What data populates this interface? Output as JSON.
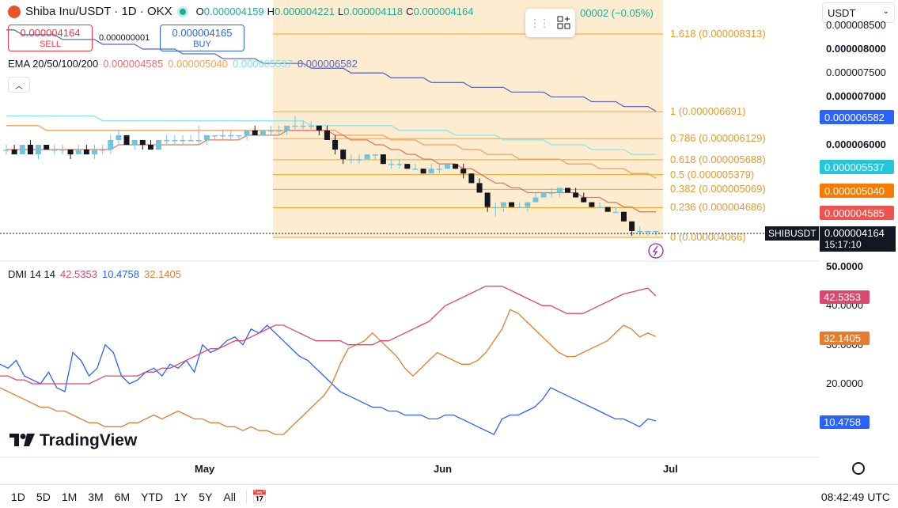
{
  "header": {
    "symbol": "Shiba Inu/USDT · 1D · OKX",
    "ohlc": [
      {
        "key": "O",
        "value": "0.000004159"
      },
      {
        "key": "H",
        "value": "0.000004221"
      },
      {
        "key": "L",
        "value": "0.000004118"
      },
      {
        "key": "C",
        "value": "0.000004164"
      }
    ],
    "change": "00002 (−0.05%)"
  },
  "trade": {
    "sell_price": "0.000004164",
    "sell_label": "SELL",
    "spread": "0.000000001",
    "buy_price": "0.000004165",
    "buy_label": "BUY"
  },
  "ema": {
    "label": "EMA 20/50/100/200",
    "values": [
      {
        "value": "0.000004585",
        "color": "#e57373"
      },
      {
        "value": "0.000005040",
        "color": "#f0a35e"
      },
      {
        "value": "0.000005537",
        "color": "#80deea"
      },
      {
        "value": "0.000006582",
        "color": "#5c6bc0"
      }
    ]
  },
  "currency": {
    "selected": "USDT"
  },
  "price_axis": [
    {
      "label": "0.000008500",
      "y": 26,
      "bold": false
    },
    {
      "label": "0.000008000",
      "y": 55,
      "bold": true
    },
    {
      "label": "0.000007500",
      "y": 85,
      "bold": false
    },
    {
      "label": "0.000007000",
      "y": 116,
      "bold": true
    },
    {
      "label": "0.000006000",
      "y": 177,
      "bold": true
    }
  ],
  "price_tags": [
    {
      "label": "0.000006582",
      "color": "#2962ff",
      "y": 140
    },
    {
      "label": "0.000005537",
      "color": "#26c6da",
      "y": 203
    },
    {
      "label": "0.000005040",
      "color": "#f57c00",
      "y": 233
    },
    {
      "label": "0.000004585",
      "color": "#ef5350",
      "y": 261
    }
  ],
  "last": {
    "symbol": "SHIBUSDT",
    "price": "0.000004164",
    "countdown": "15:17:10"
  },
  "fib_levels": [
    {
      "label": "1.618 (0.000008313)",
      "price": 8.313e-06
    },
    {
      "label": "1 (0.000006691)",
      "price": 6.691e-06
    },
    {
      "label": "0.786 (0.000006129)",
      "price": 6.129e-06
    },
    {
      "label": "0.618 (0.000005688)",
      "price": 5.688e-06
    },
    {
      "label": "0.5 (0.000005379)",
      "price": 5.379e-06
    },
    {
      "label": "0.382 (0.000005069)",
      "price": 5.069e-06
    },
    {
      "label": "0.236 (0.000004686)",
      "price": 4.686e-06
    },
    {
      "label": "0 (0.000004066)",
      "price": 4.066e-06
    }
  ],
  "dmi": {
    "label": "DMI 14 14",
    "values": [
      {
        "value": "42.5353",
        "color": "#d9486d"
      },
      {
        "value": "10.4758",
        "color": "#2962ff"
      },
      {
        "value": "32.1405",
        "color": "#e57c2f"
      }
    ],
    "axis": [
      "50.0000",
      "40.0000",
      "30.0000",
      "20.0000"
    ],
    "tags": [
      {
        "label": "42.5353",
        "color": "#d9486d",
        "y": 367
      },
      {
        "label": "32.1405",
        "color": "#e57c2f",
        "y": 419
      },
      {
        "label": "10.4758",
        "color": "#2962ff",
        "y": 525
      }
    ]
  },
  "time_axis": [
    {
      "label": "May",
      "x": 246
    },
    {
      "label": "Jun",
      "x": 548
    },
    {
      "label": "Jul",
      "x": 838
    }
  ],
  "bottom": {
    "ranges": [
      "1D",
      "5D",
      "1M",
      "3M",
      "6M",
      "YTD",
      "1Y",
      "5Y",
      "All"
    ],
    "clock": "08:42:49 UTC"
  },
  "brand": "TradingView",
  "colors": {
    "up": "#26a69a",
    "down": "#131722",
    "fib": "#f5a623",
    "fib_zone": "#fde9c8"
  },
  "chart_data": {
    "type": "candlestick",
    "candles": [
      [
        5.9e-06,
        6e-06,
        5.8e-06,
        5.9e-06
      ],
      [
        5.9e-06,
        6e-06,
        5.8e-06,
        5.8e-06
      ],
      [
        5.8e-06,
        6e-06,
        5.8e-06,
        6e-06
      ],
      [
        6e-06,
        6.1e-06,
        5.8e-06,
        5.8e-06
      ],
      [
        5.8e-06,
        6e-06,
        5.7e-06,
        6e-06
      ],
      [
        6e-06,
        6e-06,
        5.9e-06,
        5.9e-06
      ],
      [
        5.9e-06,
        6e-06,
        5.8e-06,
        5.9e-06
      ],
      [
        5.9e-06,
        6e-06,
        5.8e-06,
        5.9e-06
      ],
      [
        5.9e-06,
        5.9e-06,
        5.7e-06,
        5.8e-06
      ],
      [
        5.8e-06,
        6e-06,
        5.8e-06,
        5.9e-06
      ],
      [
        5.9e-06,
        6e-06,
        5.8e-06,
        5.8e-06
      ],
      [
        5.8e-06,
        6e-06,
        5.7e-06,
        5.9e-06
      ],
      [
        5.9e-06,
        6e-06,
        5.8e-06,
        5.9e-06
      ],
      [
        5.9e-06,
        6.2e-06,
        5.8e-06,
        6.1e-06
      ],
      [
        6.1e-06,
        6.3e-06,
        6e-06,
        6.2e-06
      ],
      [
        6.2e-06,
        6.2e-06,
        6e-06,
        6e-06
      ],
      [
        6e-06,
        6.1e-06,
        5.9e-06,
        6.1e-06
      ],
      [
        6.1e-06,
        6.1e-06,
        5.9e-06,
        6e-06
      ],
      [
        6e-06,
        6.1e-06,
        5.9e-06,
        5.9e-06
      ],
      [
        5.9e-06,
        6.1e-06,
        5.9e-06,
        6.1e-06
      ],
      [
        6.1e-06,
        6.2e-06,
        6e-06,
        6.1e-06
      ],
      [
        6.1e-06,
        6.2e-06,
        6e-06,
        6.1e-06
      ],
      [
        6.1e-06,
        6.2e-06,
        6e-06,
        6.1e-06
      ],
      [
        6.1e-06,
        6.2e-06,
        6.1e-06,
        6.1e-06
      ],
      [
        6.1e-06,
        6.4e-06,
        6e-06,
        6.1e-06
      ],
      [
        6.1e-06,
        6.2e-06,
        6e-06,
        6.2e-06
      ],
      [
        6.2e-06,
        6.2e-06,
        6.1e-06,
        6.2e-06
      ],
      [
        6.2e-06,
        6.3e-06,
        6.1e-06,
        6.2e-06
      ],
      [
        6.2e-06,
        6.3e-06,
        6.1e-06,
        6.2e-06
      ],
      [
        6.2e-06,
        6.2e-06,
        6.1e-06,
        6.2e-06
      ],
      [
        6.2e-06,
        6.3e-06,
        6.1e-06,
        6.3e-06
      ],
      [
        6.3e-06,
        6.4e-06,
        6.2e-06,
        6.2e-06
      ],
      [
        6.2e-06,
        6.3e-06,
        6.2e-06,
        6.3e-06
      ],
      [
        6.3e-06,
        6.4e-06,
        6.2e-06,
        6.3e-06
      ],
      [
        6.3e-06,
        6.4e-06,
        6.2e-06,
        6.3e-06
      ],
      [
        6.3e-06,
        6.4e-06,
        6.2e-06,
        6.4e-06
      ],
      [
        6.4e-06,
        6.6e-06,
        6.3e-06,
        6.4e-06
      ],
      [
        6.4e-06,
        6.5e-06,
        6.3e-06,
        6.4e-06
      ],
      [
        6.4e-06,
        6.5e-06,
        6.3e-06,
        6.4e-06
      ],
      [
        6.4e-06,
        6.4e-06,
        6.2e-06,
        6.3e-06
      ],
      [
        6.3e-06,
        6.4e-06,
        6.1e-06,
        6.1e-06
      ],
      [
        6.1e-06,
        6.2e-06,
        5.8e-06,
        5.9e-06
      ],
      [
        5.9e-06,
        5.9e-06,
        5.6e-06,
        5.7e-06
      ],
      [
        5.7e-06,
        5.8e-06,
        5.6e-06,
        5.7e-06
      ],
      [
        5.7e-06,
        5.8e-06,
        5.6e-06,
        5.7e-06
      ],
      [
        5.7e-06,
        5.8e-06,
        5.7e-06,
        5.8e-06
      ],
      [
        5.8e-06,
        5.8e-06,
        5.7e-06,
        5.8e-06
      ],
      [
        5.8e-06,
        5.8e-06,
        5.6e-06,
        5.6e-06
      ],
      [
        5.6e-06,
        5.7e-06,
        5.5e-06,
        5.6e-06
      ],
      [
        5.6e-06,
        5.7e-06,
        5.5e-06,
        5.6e-06
      ],
      [
        5.6e-06,
        5.6e-06,
        5.5e-06,
        5.5e-06
      ],
      [
        5.5e-06,
        5.6e-06,
        5.5e-06,
        5.5e-06
      ],
      [
        5.5e-06,
        5.5e-06,
        5.4e-06,
        5.4e-06
      ],
      [
        5.4e-06,
        5.6e-06,
        5.4e-06,
        5.5e-06
      ],
      [
        5.5e-06,
        5.6e-06,
        5.4e-06,
        5.5e-06
      ],
      [
        5.5e-06,
        5.6e-06,
        5.5e-06,
        5.6e-06
      ],
      [
        5.6e-06,
        5.6e-06,
        5.5e-06,
        5.5e-06
      ],
      [
        5.5e-06,
        5.6e-06,
        5.3e-06,
        5.4e-06
      ],
      [
        5.4e-06,
        5.4e-06,
        5.2e-06,
        5.2e-06
      ],
      [
        5.2e-06,
        5.3e-06,
        5e-06,
        5e-06
      ],
      [
        5e-06,
        5e-06,
        4.6e-06,
        4.7e-06
      ],
      [
        4.7e-06,
        4.8e-06,
        4.5e-06,
        4.7e-06
      ],
      [
        4.7e-06,
        4.8e-06,
        4.6e-06,
        4.8e-06
      ],
      [
        4.8e-06,
        4.8e-06,
        4.7e-06,
        4.7e-06
      ],
      [
        4.7e-06,
        4.8e-06,
        4.7e-06,
        4.7e-06
      ],
      [
        4.7e-06,
        4.8e-06,
        4.6e-06,
        4.8e-06
      ],
      [
        4.8e-06,
        5e-06,
        4.8e-06,
        4.9e-06
      ],
      [
        4.9e-06,
        5e-06,
        4.9e-06,
        5e-06
      ],
      [
        5e-06,
        5.1e-06,
        4.9e-06,
        5e-06
      ],
      [
        5e-06,
        5.1e-06,
        4.9e-06,
        5.1e-06
      ],
      [
        5.1e-06,
        5.1e-06,
        5e-06,
        5e-06
      ],
      [
        5e-06,
        5.1e-06,
        4.9e-06,
        4.9e-06
      ],
      [
        4.9e-06,
        5e-06,
        4.8e-06,
        4.8e-06
      ],
      [
        4.8e-06,
        4.8e-06,
        4.7e-06,
        4.7e-06
      ],
      [
        4.7e-06,
        4.8e-06,
        4.7e-06,
        4.7e-06
      ],
      [
        4.7e-06,
        4.7e-06,
        4.6e-06,
        4.6e-06
      ],
      [
        4.6e-06,
        4.7e-06,
        4.6e-06,
        4.6e-06
      ],
      [
        4.6e-06,
        4.6e-06,
        4.4e-06,
        4.4e-06
      ],
      [
        4.4e-06,
        4.4e-06,
        4.1e-06,
        4.2e-06
      ],
      [
        4.2e-06,
        4.3e-06,
        4.1e-06,
        4.2e-06
      ],
      [
        4.2e-06,
        4.2e-06,
        4.1e-06,
        4.2e-06
      ],
      [
        4.2e-06,
        4.2e-06,
        4.1e-06,
        4.2e-06
      ]
    ],
    "ema20": [
      5.9e-06,
      5.9e-06,
      5.9e-06,
      5.9e-06,
      5.9e-06,
      5.9e-06,
      5.9e-06,
      5.9e-06,
      5.9e-06,
      5.9e-06,
      5.9e-06,
      5.9e-06,
      5.9e-06,
      5.9e-06,
      6e-06,
      6e-06,
      6e-06,
      6e-06,
      6e-06,
      6e-06,
      6e-06,
      6e-06,
      6e-06,
      6e-06,
      6e-06,
      6.1e-06,
      6.1e-06,
      6.1e-06,
      6.1e-06,
      6.1e-06,
      6.2e-06,
      6.2e-06,
      6.2e-06,
      6.2e-06,
      6.2e-06,
      6.3e-06,
      6.3e-06,
      6.3e-06,
      6.3e-06,
      6.3e-06,
      6.3e-06,
      6.2e-06,
      6.2e-06,
      6.1e-06,
      6.1e-06,
      6.1e-06,
      6e-06,
      6e-06,
      5.9e-06,
      5.9e-06,
      5.8e-06,
      5.8e-06,
      5.7e-06,
      5.7e-06,
      5.6e-06,
      5.6e-06,
      5.6e-06,
      5.5e-06,
      5.5e-06,
      5.4e-06,
      5.3e-06,
      5.2e-06,
      5.2e-06,
      5.1e-06,
      5.1e-06,
      5e-06,
      5e-06,
      5e-06,
      5e-06,
      5e-06,
      5e-06,
      5e-06,
      4.9e-06,
      4.9e-06,
      4.9e-06,
      4.8e-06,
      4.8e-06,
      4.7e-06,
      4.7e-06,
      4.6e-06,
      4.6e-06,
      4.6e-06
    ],
    "ema50": [
      6.4e-06,
      6.4e-06,
      6.4e-06,
      6.4e-06,
      6.4e-06,
      6.3e-06,
      6.3e-06,
      6.3e-06,
      6.3e-06,
      6.3e-06,
      6.3e-06,
      6.3e-06,
      6.3e-06,
      6.3e-06,
      6.3e-06,
      6.3e-06,
      6.3e-06,
      6.3e-06,
      6.3e-06,
      6.3e-06,
      6.3e-06,
      6.3e-06,
      6.3e-06,
      6.3e-06,
      6.3e-06,
      6.3e-06,
      6.3e-06,
      6.3e-06,
      6.3e-06,
      6.3e-06,
      6.3e-06,
      6.3e-06,
      6.3e-06,
      6.3e-06,
      6.3e-06,
      6.3e-06,
      6.3e-06,
      6.3e-06,
      6.3e-06,
      6.3e-06,
      6.3e-06,
      6.3e-06,
      6.2e-06,
      6.2e-06,
      6.2e-06,
      6.2e-06,
      6.2e-06,
      6.2e-06,
      6.1e-06,
      6.1e-06,
      6.1e-06,
      6.1e-06,
      6e-06,
      6e-06,
      6e-06,
      6e-06,
      6e-06,
      5.9e-06,
      5.9e-06,
      5.9e-06,
      5.8e-06,
      5.8e-06,
      5.8e-06,
      5.8e-06,
      5.7e-06,
      5.7e-06,
      5.7e-06,
      5.7e-06,
      5.7e-06,
      5.7e-06,
      5.6e-06,
      5.6e-06,
      5.6e-06,
      5.6e-06,
      5.5e-06,
      5.5e-06,
      5.5e-06,
      5.5e-06,
      5.4e-06,
      5.4e-06,
      5.4e-06,
      5.3e-06
    ],
    "ema100": [
      6.6e-06,
      6.6e-06,
      6.6e-06,
      6.6e-06,
      6.6e-06,
      6.6e-06,
      6.6e-06,
      6.6e-06,
      6.6e-06,
      6.6e-06,
      6.6e-06,
      6.6e-06,
      6.5e-06,
      6.5e-06,
      6.5e-06,
      6.5e-06,
      6.5e-06,
      6.5e-06,
      6.5e-06,
      6.5e-06,
      6.5e-06,
      6.5e-06,
      6.5e-06,
      6.5e-06,
      6.5e-06,
      6.5e-06,
      6.5e-06,
      6.5e-06,
      6.5e-06,
      6.5e-06,
      6.5e-06,
      6.5e-06,
      6.5e-06,
      6.5e-06,
      6.5e-06,
      6.5e-06,
      6.5e-06,
      6.5e-06,
      6.4e-06,
      6.4e-06,
      6.4e-06,
      6.4e-06,
      6.4e-06,
      6.4e-06,
      6.4e-06,
      6.4e-06,
      6.4e-06,
      6.4e-06,
      6.4e-06,
      6.3e-06,
      6.3e-06,
      6.3e-06,
      6.3e-06,
      6.3e-06,
      6.3e-06,
      6.3e-06,
      6.2e-06,
      6.2e-06,
      6.2e-06,
      6.2e-06,
      6.2e-06,
      6.2e-06,
      6.1e-06,
      6.1e-06,
      6.1e-06,
      6.1e-06,
      6.1e-06,
      6.1e-06,
      6e-06,
      6e-06,
      6e-06,
      6e-06,
      6e-06,
      5.9e-06,
      5.9e-06,
      5.9e-06,
      5.9e-06,
      5.9e-06,
      5.8e-06,
      5.8e-06,
      5.8e-06,
      5.8e-06
    ],
    "ema200": [
      8.4e-06,
      8.4e-06,
      8.3e-06,
      8.3e-06,
      8.3e-06,
      8.3e-06,
      8.3e-06,
      8.2e-06,
      8.2e-06,
      8.2e-06,
      8.2e-06,
      8.2e-06,
      8.1e-06,
      8.1e-06,
      8.1e-06,
      8.1e-06,
      8.1e-06,
      8e-06,
      8e-06,
      8e-06,
      8e-06,
      8e-06,
      7.9e-06,
      7.9e-06,
      7.9e-06,
      7.9e-06,
      7.9e-06,
      7.8e-06,
      7.8e-06,
      7.8e-06,
      7.8e-06,
      7.8e-06,
      7.7e-06,
      7.7e-06,
      7.7e-06,
      7.7e-06,
      7.7e-06,
      7.7e-06,
      7.6e-06,
      7.6e-06,
      7.6e-06,
      7.6e-06,
      7.6e-06,
      7.5e-06,
      7.5e-06,
      7.5e-06,
      7.5e-06,
      7.5e-06,
      7.4e-06,
      7.4e-06,
      7.4e-06,
      7.4e-06,
      7.4e-06,
      7.3e-06,
      7.3e-06,
      7.3e-06,
      7.3e-06,
      7.3e-06,
      7.2e-06,
      7.2e-06,
      7.2e-06,
      7.2e-06,
      7.2e-06,
      7.1e-06,
      7.1e-06,
      7.1e-06,
      7.1e-06,
      7.1e-06,
      7e-06,
      7e-06,
      7e-06,
      7e-06,
      7e-06,
      6.9e-06,
      6.9e-06,
      6.9e-06,
      6.9e-06,
      6.8e-06,
      6.8e-06,
      6.8e-06,
      6.8e-06,
      6.7e-06
    ],
    "dmi_plus": [
      25,
      24,
      26,
      22,
      21,
      20,
      23,
      19,
      18,
      28,
      26,
      22,
      24,
      30,
      28,
      22,
      20,
      21,
      23,
      24,
      22,
      25,
      24,
      26,
      23,
      30,
      28,
      29,
      31,
      32,
      30,
      34,
      33,
      35,
      33,
      31,
      29,
      27,
      26,
      24,
      22,
      20,
      18,
      17,
      16,
      15,
      14,
      14,
      13,
      13,
      12,
      12,
      12,
      11,
      11,
      12,
      12,
      11,
      10,
      9,
      8,
      7,
      11,
      12,
      12,
      13,
      14,
      16,
      19,
      18,
      17,
      16,
      15,
      14,
      13,
      12,
      11,
      11,
      10,
      9,
      11,
      10.5
    ],
    "dmi_minus": [
      19,
      18,
      17,
      16,
      15,
      14,
      14,
      13,
      13,
      12,
      11,
      10,
      10,
      9,
      9,
      9,
      10,
      10,
      11,
      12,
      11,
      12,
      13,
      12,
      11,
      11,
      10,
      10,
      9,
      9,
      8,
      9,
      8,
      8,
      7,
      7,
      9,
      11,
      13,
      15,
      17,
      20,
      25,
      29,
      30,
      31,
      33,
      31,
      29,
      27,
      24,
      22,
      24,
      26,
      28,
      27,
      26,
      25,
      25,
      26,
      28,
      31,
      34,
      39,
      38,
      36,
      34,
      32,
      30,
      28,
      27,
      27,
      28,
      29,
      30,
      31,
      33,
      35,
      34,
      32,
      33,
      32.1
    ],
    "adx": [
      22,
      22,
      21,
      21,
      20,
      20,
      20,
      20,
      20,
      20,
      20,
      20,
      21,
      22,
      22,
      22,
      22,
      22,
      23,
      23,
      24,
      24,
      25,
      26,
      27,
      28,
      29,
      29,
      30,
      31,
      31,
      32,
      33,
      34,
      35,
      35,
      34,
      33,
      32,
      31,
      31,
      31,
      31,
      30,
      30,
      30,
      30,
      31,
      31,
      32,
      33,
      34,
      35,
      36,
      38,
      40,
      41,
      42,
      43,
      44,
      45,
      45,
      45,
      44,
      43,
      42,
      41,
      40,
      40,
      39,
      38,
      38,
      38,
      39,
      40,
      41,
      42,
      43,
      43.5,
      44,
      44.5,
      42.5
    ]
  }
}
